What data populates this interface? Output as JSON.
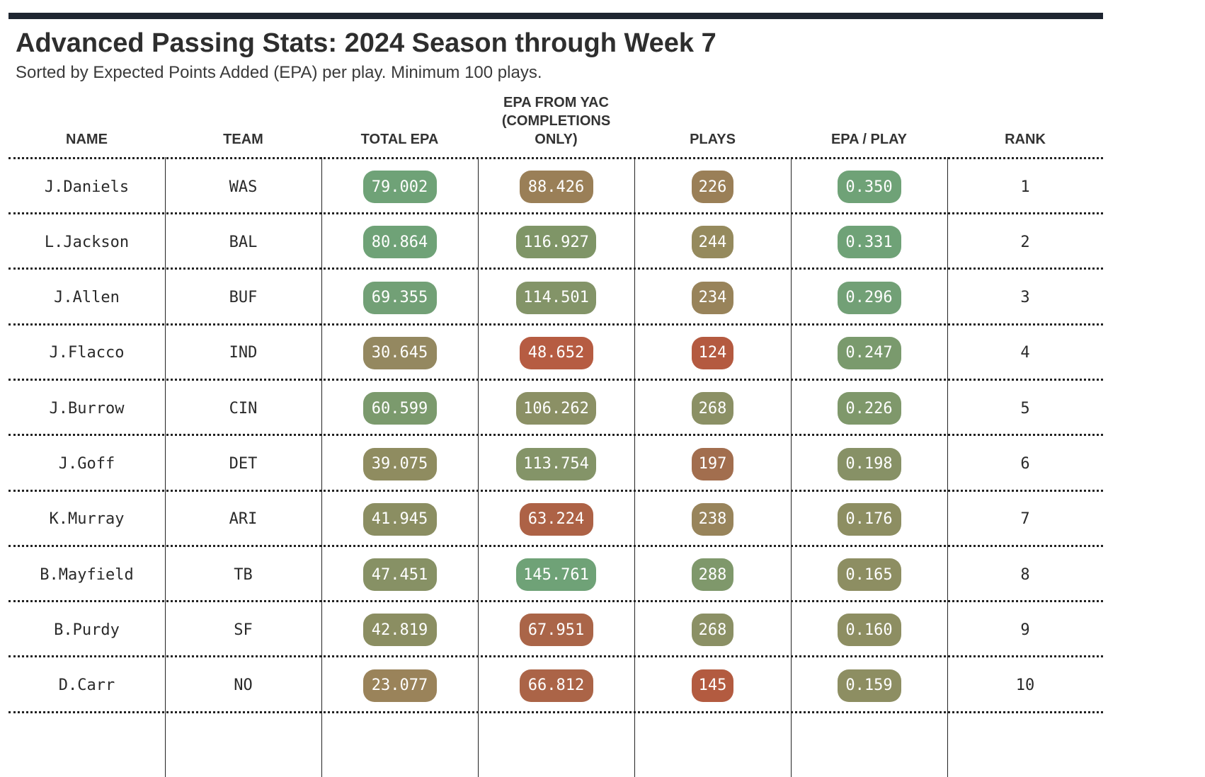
{
  "title": "Advanced Passing Stats: 2024 Season through Week 7",
  "subtitle": "Sorted by Expected Points Added (EPA) per play. Minimum 100 plays.",
  "columns": {
    "name": "NAME",
    "team": "TEAM",
    "total_epa": "TOTAL EPA",
    "epa_yac_line1": "EPA FROM YAC",
    "epa_yac_line2": "(COMPLETIONS",
    "epa_yac_line3": "ONLY)",
    "plays": "PLAYS",
    "epa_play": "EPA / PLAY",
    "rank": "RANK"
  },
  "colors": {
    "good": "#6d9e74",
    "mid": "#8e8a5c",
    "bad": "#b65b40",
    "rule": "#222222",
    "topbar": "#1e2530"
  },
  "chart_data": {
    "type": "table",
    "title": "Advanced Passing Stats: 2024 Season through Week 7",
    "subtitle": "Sorted by Expected Points Added (EPA) per play. Minimum 100 plays.",
    "columns": [
      "NAME",
      "TEAM",
      "TOTAL EPA",
      "EPA FROM YAC (COMPLETIONS ONLY)",
      "PLAYS",
      "EPA / PLAY",
      "RANK"
    ],
    "rows": [
      {
        "name": "J.Daniels",
        "team": "WAS",
        "total_epa": "79.002",
        "epa_yac": "88.426",
        "plays": "226",
        "epa_play": "0.350",
        "rank": "1",
        "colors": {
          "total_epa": "#6fa277",
          "epa_yac": "#9a7f57",
          "plays": "#9a7f57",
          "epa_play": "#6fa277"
        }
      },
      {
        "name": "L.Jackson",
        "team": "BAL",
        "total_epa": "80.864",
        "epa_yac": "116.927",
        "plays": "244",
        "epa_play": "0.331",
        "rank": "2",
        "colors": {
          "total_epa": "#6fa277",
          "epa_yac": "#7f9567",
          "plays": "#958a5d",
          "epa_play": "#6fa277"
        }
      },
      {
        "name": "J.Allen",
        "team": "BUF",
        "total_epa": "69.355",
        "epa_yac": "114.501",
        "plays": "234",
        "epa_play": "0.296",
        "rank": "3",
        "colors": {
          "total_epa": "#72a076",
          "epa_yac": "#839468",
          "plays": "#98835a",
          "epa_play": "#72a076"
        }
      },
      {
        "name": "J.Flacco",
        "team": "IND",
        "total_epa": "30.645",
        "epa_yac": "48.652",
        "plays": "124",
        "epa_play": "0.247",
        "rank": "4",
        "colors": {
          "total_epa": "#948860",
          "epa_yac": "#b65c42",
          "plays": "#b45a40",
          "epa_play": "#7a9a6d"
        }
      },
      {
        "name": "J.Burrow",
        "team": "CIN",
        "total_epa": "60.599",
        "epa_yac": "106.262",
        "plays": "268",
        "epa_play": "0.226",
        "rank": "5",
        "colors": {
          "total_epa": "#7b9a6d",
          "epa_yac": "#8b9065",
          "plays": "#8b9065",
          "epa_play": "#7f986b"
        }
      },
      {
        "name": "J.Goff",
        "team": "DET",
        "total_epa": "39.075",
        "epa_yac": "113.754",
        "plays": "197",
        "epa_play": "0.198",
        "rank": "6",
        "colors": {
          "total_epa": "#8f8c60",
          "epa_yac": "#849468",
          "plays": "#a26e4e",
          "epa_play": "#879166"
        }
      },
      {
        "name": "K.Murray",
        "team": "ARI",
        "total_epa": "41.945",
        "epa_yac": "63.224",
        "plays": "238",
        "epa_play": "0.176",
        "rank": "7",
        "colors": {
          "total_epa": "#8b8e62",
          "epa_yac": "#ad6246",
          "plays": "#98845b",
          "epa_play": "#8d8e62"
        }
      },
      {
        "name": "B.Mayfield",
        "team": "TB",
        "total_epa": "47.451",
        "epa_yac": "145.761",
        "plays": "288",
        "epa_play": "0.165",
        "rank": "8",
        "colors": {
          "total_epa": "#879165",
          "epa_yac": "#6fa277",
          "plays": "#7f986b",
          "epa_play": "#8d8e62"
        }
      },
      {
        "name": "B.Purdy",
        "team": "SF",
        "total_epa": "42.819",
        "epa_yac": "67.951",
        "plays": "268",
        "epa_play": "0.160",
        "rank": "9",
        "colors": {
          "total_epa": "#8b8e62",
          "epa_yac": "#aa6548",
          "plays": "#8b9065",
          "epa_play": "#8d8e62"
        }
      },
      {
        "name": "D.Carr",
        "team": "NO",
        "total_epa": "23.077",
        "epa_yac": "66.812",
        "plays": "145",
        "epa_play": "0.159",
        "rank": "10",
        "colors": {
          "total_epa": "#9a835a",
          "epa_yac": "#ab6447",
          "plays": "#b35b40",
          "epa_play": "#8d8e62"
        }
      }
    ]
  }
}
